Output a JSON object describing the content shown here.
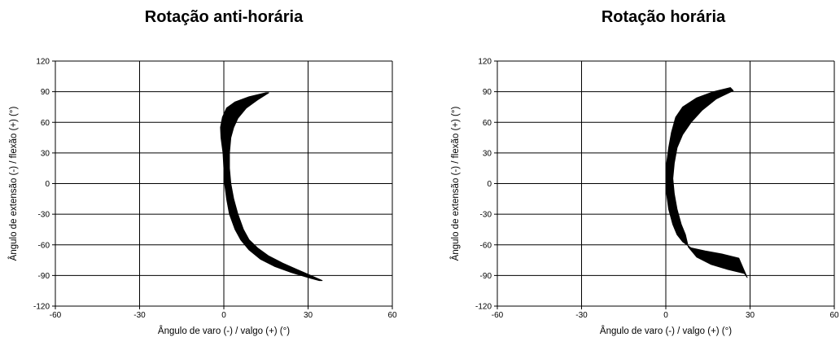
{
  "chart_data": [
    {
      "type": "scatter",
      "title": "Rotação anti-horária",
      "xlabel": "Ângulo de varo (-) / valgo (+) (°)",
      "ylabel": "Ângulo de extensão (-) / flexão (+) (°)",
      "xlim": [
        -60,
        60
      ],
      "ylim": [
        -120,
        120
      ],
      "xticks": [
        -60,
        -30,
        0,
        30,
        60
      ],
      "yticks": [
        -120,
        -90,
        -60,
        -30,
        0,
        30,
        60,
        90,
        120
      ],
      "xticklabels": [
        "-60",
        "-30",
        "0",
        "30",
        "60"
      ],
      "yticklabels": [
        "-120",
        "-90",
        "-60",
        "-30",
        "0",
        "30",
        "60",
        "90",
        "120"
      ],
      "grid": true,
      "band": {
        "left_edge": [
          [
            15,
            89
          ],
          [
            9,
            85
          ],
          [
            4,
            80
          ],
          [
            1,
            74
          ],
          [
            -0.5,
            65
          ],
          [
            -1.2,
            55
          ],
          [
            -1,
            45
          ],
          [
            -0.3,
            30
          ],
          [
            0,
            15
          ],
          [
            0.3,
            0
          ],
          [
            1,
            -15
          ],
          [
            2,
            -30
          ],
          [
            4,
            -45
          ],
          [
            6,
            -55
          ],
          [
            9,
            -65
          ],
          [
            13,
            -74
          ],
          [
            18,
            -81
          ],
          [
            24,
            -87
          ],
          [
            30,
            -92
          ],
          [
            34,
            -95
          ]
        ],
        "right_edge": [
          [
            35,
            -95
          ],
          [
            31,
            -90
          ],
          [
            26,
            -84
          ],
          [
            21,
            -78
          ],
          [
            16,
            -71
          ],
          [
            12,
            -63
          ],
          [
            9,
            -55
          ],
          [
            7,
            -45
          ],
          [
            5,
            -30
          ],
          [
            3.5,
            -15
          ],
          [
            2.5,
            0
          ],
          [
            2,
            15
          ],
          [
            2,
            30
          ],
          [
            2.5,
            45
          ],
          [
            3.5,
            55
          ],
          [
            5,
            64
          ],
          [
            8,
            74
          ],
          [
            12,
            82
          ],
          [
            16,
            89
          ]
        ]
      }
    },
    {
      "type": "scatter",
      "title": "Rotação horária",
      "xlabel": "Ângulo de varo (-) / valgo (+) (°)",
      "ylabel": "Ângulo de extensão (-) / flexão (+) (°)",
      "xlim": [
        -60,
        60
      ],
      "ylim": [
        -120,
        120
      ],
      "xticks": [
        -60,
        -30,
        0,
        30,
        60
      ],
      "yticks": [
        -120,
        -90,
        -60,
        -30,
        0,
        30,
        60,
        90,
        120
      ],
      "xticklabels": [
        "-60",
        "-30",
        "0",
        "30",
        "60"
      ],
      "yticklabels": [
        "-120",
        "-90",
        "-60",
        "-30",
        "0",
        "30",
        "60",
        "90",
        "120"
      ],
      "grid": true,
      "band": {
        "left_edge": [
          [
            23,
            94
          ],
          [
            17,
            90
          ],
          [
            11,
            84
          ],
          [
            6,
            75
          ],
          [
            3.5,
            65
          ],
          [
            2,
            50
          ],
          [
            1,
            35
          ],
          [
            0.3,
            20
          ],
          [
            0,
            5
          ],
          [
            0.3,
            -10
          ],
          [
            1,
            -25
          ],
          [
            2.5,
            -40
          ],
          [
            4,
            -50
          ],
          [
            6,
            -57
          ],
          [
            9,
            -63
          ],
          [
            14,
            -66
          ],
          [
            20,
            -69
          ],
          [
            26,
            -73
          ]
        ],
        "right_edge": [
          [
            29,
            -92
          ],
          [
            28,
            -88
          ],
          [
            22,
            -84
          ],
          [
            16,
            -79
          ],
          [
            11,
            -72
          ],
          [
            8,
            -62
          ],
          [
            7,
            -50
          ],
          [
            5.5,
            -40
          ],
          [
            4,
            -25
          ],
          [
            3,
            -10
          ],
          [
            2.5,
            5
          ],
          [
            3,
            20
          ],
          [
            4,
            35
          ],
          [
            6,
            48
          ],
          [
            9,
            60
          ],
          [
            13,
            72
          ],
          [
            18,
            83
          ],
          [
            24,
            91
          ]
        ]
      }
    }
  ]
}
